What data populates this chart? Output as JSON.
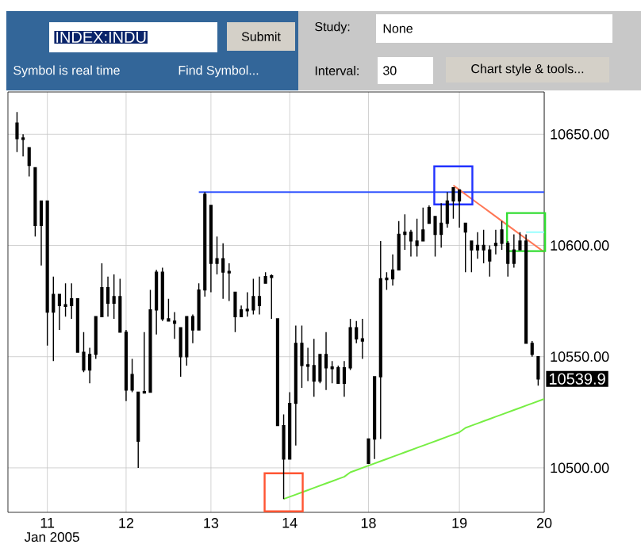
{
  "chart_data": {
    "type": "candlestick",
    "color": "#000000",
    "categories": [
      null,
      null,
      null,
      null,
      null,
      "11",
      null,
      null,
      null,
      null,
      null,
      null,
      null,
      null,
      null,
      null,
      null,
      null,
      "12",
      null,
      null,
      null,
      null,
      null,
      null,
      null,
      null,
      null,
      null,
      null,
      null,
      null,
      "13",
      null,
      null,
      null,
      null,
      null,
      null,
      null,
      null,
      null,
      null,
      null,
      null,
      "14",
      null,
      null,
      null,
      null,
      null,
      null,
      null,
      null,
      null,
      null,
      null,
      null,
      "18",
      null,
      null,
      null,
      null,
      null,
      null,
      null,
      null,
      null,
      null,
      null,
      null,
      null,
      null,
      "19",
      null,
      null,
      null,
      null,
      null,
      null,
      null,
      null,
      null,
      null,
      null,
      null,
      null,
      "20"
    ],
    "ohlc": [
      [
        10655,
        10660,
        10642,
        10648
      ],
      [
        10648,
        10650,
        10640,
        10648
      ],
      [
        10644,
        10644,
        10631,
        10636
      ],
      [
        10635,
        10635,
        10604,
        10609
      ],
      [
        10609,
        10620,
        10591,
        10620
      ],
      [
        10620,
        10620,
        10555,
        10570
      ],
      [
        10570,
        10586,
        10548,
        10578
      ],
      [
        10578,
        10578,
        10562,
        10573
      ],
      [
        10573,
        10583,
        10568,
        10573
      ],
      [
        10573,
        10583,
        10567,
        10576
      ],
      [
        10576,
        10576,
        10552,
        10552
      ],
      [
        10552,
        10561,
        10543,
        10544
      ],
      [
        10544,
        10554,
        10538,
        10551
      ],
      [
        10551,
        10568,
        10549,
        10568
      ],
      [
        10568,
        10592,
        10568,
        10581
      ],
      [
        10581,
        10586,
        10568,
        10574
      ],
      [
        10574,
        10587,
        10567,
        10577
      ],
      [
        10577,
        10585,
        10561,
        10561
      ],
      [
        10561,
        10562,
        10530,
        10535
      ],
      [
        10535,
        10549,
        10534,
        10542
      ],
      [
        10534,
        10534,
        10500,
        10512
      ],
      [
        10534,
        10561,
        10534,
        10534
      ],
      [
        10534,
        10580,
        10534,
        10571
      ],
      [
        10571,
        10589,
        10560,
        10588
      ],
      [
        10588,
        10590,
        10566,
        10567
      ],
      [
        10567,
        10576,
        10566,
        10566
      ],
      [
        10566,
        10570,
        10558,
        10565
      ],
      [
        10563,
        10563,
        10541,
        10550
      ],
      [
        10550,
        10568,
        10546,
        10568
      ],
      [
        10568,
        10569,
        10556,
        10562
      ],
      [
        10562,
        10583,
        10562,
        10580
      ],
      [
        10580,
        10624,
        10577,
        10623
      ],
      [
        10618,
        10618,
        10579,
        10592
      ],
      [
        10592,
        10604,
        10587,
        10594
      ],
      [
        10594,
        10601,
        10576,
        10588
      ],
      [
        10588,
        10592,
        10575,
        10588
      ],
      [
        10579,
        10579,
        10561,
        10568
      ],
      [
        10568,
        10573,
        10568,
        10571
      ],
      [
        10571,
        10579,
        10568,
        10571
      ],
      [
        10571,
        10585,
        10569,
        10577
      ],
      [
        10577,
        10586,
        10569,
        10573
      ],
      [
        10583,
        10588,
        10583,
        10586
      ],
      [
        10586,
        10587,
        10567,
        10586
      ],
      [
        10567,
        10567,
        10519,
        10519
      ],
      [
        10519,
        10524,
        10486,
        10504
      ],
      [
        10504,
        10534,
        10504,
        10529
      ],
      [
        10529,
        10564,
        10510,
        10556
      ],
      [
        10556,
        10564,
        10536,
        10546
      ],
      [
        10546,
        10554,
        10539,
        10546
      ],
      [
        10546,
        10558,
        10532,
        10539
      ],
      [
        10539,
        10551,
        10538,
        10551
      ],
      [
        10551,
        10561,
        10535,
        10545
      ],
      [
        10545,
        10548,
        10538,
        10545
      ],
      [
        10545,
        10546,
        10538,
        10538
      ],
      [
        10538,
        10548,
        10532,
        10545
      ],
      [
        10545,
        10567,
        10544,
        10563
      ],
      [
        10563,
        10566,
        10556,
        10558
      ],
      [
        10558,
        10567,
        10549,
        10557
      ],
      [
        10502,
        10513,
        10502,
        10513
      ],
      [
        10513,
        10541,
        10504,
        10541
      ],
      [
        10541,
        10602,
        10513,
        10585
      ],
      [
        10585,
        10588,
        10580,
        10585
      ],
      [
        10585,
        10596,
        10582,
        10589
      ],
      [
        10589,
        10611,
        10589,
        10605
      ],
      [
        10605,
        10614,
        10598,
        10606
      ],
      [
        10606,
        10607,
        10595,
        10602
      ],
      [
        10602,
        10612,
        10595,
        10600
      ],
      [
        10602,
        10617,
        10602,
        10607
      ],
      [
        10610,
        10618,
        10610,
        10617
      ],
      [
        10613,
        10613,
        10595,
        10605
      ],
      [
        10605,
        10619,
        10599,
        10610
      ],
      [
        10610,
        10624,
        10608,
        10620
      ],
      [
        10620,
        10626,
        10612,
        10626
      ],
      [
        10625,
        10625,
        10608,
        10620
      ],
      [
        10610,
        10610,
        10588,
        10606
      ],
      [
        10602,
        10602,
        10588,
        10598
      ],
      [
        10598,
        10606,
        10594,
        10600
      ],
      [
        10600,
        10607,
        10592,
        10598
      ],
      [
        10598,
        10600,
        10586,
        10593
      ],
      [
        10600,
        10607,
        10596,
        10601
      ],
      [
        10601,
        10611,
        10598,
        10607
      ],
      [
        10601,
        10602,
        10586,
        10592
      ],
      [
        10592,
        10605,
        10590,
        10598
      ],
      [
        10598,
        10606,
        10598,
        10602
      ],
      [
        10602,
        10605,
        10556,
        10556
      ],
      [
        10556,
        10557,
        10550,
        10551
      ],
      [
        10550,
        10550,
        10537,
        10540
      ],
      null
    ],
    "series": [
      {
        "type": "line",
        "color": "#3355ff",
        "values": [
          null,
          null,
          null,
          null,
          null,
          null,
          null,
          null,
          null,
          null,
          null,
          null,
          null,
          null,
          null,
          null,
          null,
          null,
          null,
          null,
          null,
          null,
          null,
          null,
          null,
          null,
          null,
          null,
          null,
          null,
          10624,
          10624,
          10624,
          10624,
          10624,
          10624,
          10624,
          10624,
          10624,
          10624,
          10624,
          10624,
          10624,
          10624,
          10624,
          10624,
          10624,
          10624,
          10624,
          10624,
          10624,
          10624,
          10624,
          10624,
          10624,
          10624,
          10624,
          10624,
          10624,
          10624,
          10624,
          10624,
          10624,
          10624,
          10624,
          10624,
          10624,
          10624,
          10624,
          10624,
          10624,
          10624,
          10624,
          10624,
          10624,
          10624,
          10624,
          10624,
          10624,
          10624,
          10624,
          10624,
          10624,
          10624,
          10624,
          10624,
          10624,
          10624
        ]
      },
      {
        "type": "line",
        "color": "#99ffff",
        "values": [
          null,
          null,
          null,
          null,
          null,
          null,
          null,
          null,
          null,
          null,
          null,
          null,
          null,
          null,
          null,
          null,
          null,
          null,
          null,
          null,
          null,
          null,
          null,
          null,
          null,
          null,
          null,
          null,
          null,
          null,
          null,
          null,
          null,
          null,
          null,
          null,
          null,
          null,
          null,
          null,
          null,
          null,
          null,
          null,
          null,
          null,
          null,
          null,
          null,
          null,
          null,
          null,
          null,
          null,
          null,
          null,
          null,
          null,
          null,
          null,
          null,
          null,
          null,
          null,
          null,
          null,
          null,
          null,
          null,
          null,
          null,
          null,
          null,
          null,
          null,
          null,
          null,
          null,
          null,
          null,
          null,
          null,
          null,
          null,
          10606,
          10606,
          10606,
          10606
        ]
      },
      {
        "type": "line",
        "color": "#ff7755",
        "values": [
          null,
          null,
          null,
          null,
          null,
          null,
          null,
          null,
          null,
          null,
          null,
          null,
          null,
          null,
          null,
          null,
          null,
          null,
          null,
          null,
          null,
          null,
          null,
          null,
          null,
          null,
          null,
          null,
          null,
          null,
          null,
          null,
          null,
          null,
          null,
          null,
          null,
          null,
          null,
          null,
          null,
          null,
          null,
          null,
          null,
          null,
          null,
          null,
          null,
          null,
          null,
          null,
          null,
          null,
          null,
          null,
          null,
          null,
          null,
          null,
          null,
          null,
          null,
          null,
          null,
          null,
          null,
          null,
          null,
          null,
          null,
          null,
          10627,
          10625,
          10623,
          10621,
          10619,
          10617,
          10615,
          10613,
          10611,
          10609,
          10607,
          10605,
          10603,
          10601,
          10599,
          10597
        ]
      },
      {
        "type": "line",
        "color": "#77ee44",
        "values": [
          null,
          null,
          null,
          null,
          null,
          null,
          null,
          null,
          null,
          null,
          null,
          null,
          null,
          null,
          null,
          null,
          null,
          null,
          null,
          null,
          null,
          null,
          null,
          null,
          null,
          null,
          null,
          null,
          null,
          null,
          null,
          null,
          null,
          null,
          null,
          null,
          null,
          null,
          null,
          null,
          null,
          null,
          null,
          null,
          10486,
          10487,
          10488,
          10489,
          10490,
          10491,
          10492,
          10493,
          10494,
          10495,
          10496,
          10498,
          10499,
          10500,
          10501,
          10502,
          10503,
          10504,
          10505,
          10506,
          10507,
          10508,
          10509,
          10510,
          10511,
          10512,
          10513,
          10514,
          10515,
          10516,
          10518,
          10519,
          10520,
          10521,
          10522,
          10523,
          10524,
          10525,
          10526,
          10527,
          10528,
          10529,
          10530,
          10531
        ]
      },
      {
        "type": "scatter",
        "marker": "square",
        "color": "#ff5533",
        "values": [
          null,
          null,
          null,
          null,
          null,
          null,
          null,
          null,
          null,
          null,
          null,
          null,
          null,
          null,
          null,
          null,
          null,
          null,
          null,
          null,
          null,
          null,
          null,
          null,
          null,
          null,
          null,
          null,
          null,
          null,
          null,
          null,
          null,
          null,
          null,
          null,
          null,
          null,
          null,
          null,
          null,
          null,
          null,
          null,
          10489,
          null,
          null,
          null,
          null,
          null,
          null,
          null,
          null,
          null,
          null,
          null,
          null,
          null,
          null,
          null,
          null,
          null,
          null,
          null,
          null,
          null,
          null,
          null,
          null,
          null,
          null,
          null,
          null,
          null,
          null,
          null,
          null,
          null,
          null,
          null,
          null,
          null,
          null,
          null,
          null,
          null,
          null,
          null
        ]
      },
      {
        "type": "scatter",
        "marker": "square",
        "color": "#2233ff",
        "values": [
          null,
          null,
          null,
          null,
          null,
          null,
          null,
          null,
          null,
          null,
          null,
          null,
          null,
          null,
          null,
          null,
          null,
          null,
          null,
          null,
          null,
          null,
          null,
          null,
          null,
          null,
          null,
          null,
          null,
          null,
          null,
          null,
          null,
          null,
          null,
          null,
          null,
          null,
          null,
          null,
          null,
          null,
          null,
          null,
          null,
          null,
          null,
          null,
          null,
          null,
          null,
          null,
          null,
          null,
          null,
          null,
          null,
          null,
          null,
          null,
          null,
          null,
          null,
          null,
          null,
          null,
          null,
          null,
          null,
          null,
          null,
          null,
          10627,
          null,
          null,
          null,
          null,
          null,
          null,
          null,
          null,
          null,
          null,
          null,
          null,
          null,
          null,
          null
        ]
      },
      {
        "type": "scatter",
        "marker": "square",
        "color": "#33dd33",
        "values": [
          null,
          null,
          null,
          null,
          null,
          null,
          null,
          null,
          null,
          null,
          null,
          null,
          null,
          null,
          null,
          null,
          null,
          null,
          null,
          null,
          null,
          null,
          null,
          null,
          null,
          null,
          null,
          null,
          null,
          null,
          null,
          null,
          null,
          null,
          null,
          null,
          null,
          null,
          null,
          null,
          null,
          null,
          null,
          null,
          null,
          null,
          null,
          null,
          null,
          null,
          null,
          null,
          null,
          null,
          null,
          null,
          null,
          null,
          null,
          null,
          null,
          null,
          null,
          null,
          null,
          null,
          null,
          null,
          null,
          null,
          null,
          null,
          null,
          null,
          null,
          null,
          null,
          null,
          null,
          null,
          null,
          null,
          null,
          null,
          10606,
          null,
          null,
          null
        ]
      }
    ],
    "ylim": [
      10480,
      10669
    ],
    "yticks": [
      {
        "value": 10500,
        "label": "10500.00"
      },
      {
        "value": 10550,
        "label": "10550.00"
      },
      {
        "value": 10600,
        "label": "10600.00"
      },
      {
        "value": 10650,
        "label": "10650.00"
      }
    ],
    "xlabel": "Jan 2005",
    "grid": true,
    "annotations": [
      "INDEX:INDU",
      "Submit",
      "Symbol is real time",
      "Find Symbol...",
      "Study:",
      "None",
      "Interval:",
      "30",
      "Chart style & tools...",
      "10539.9"
    ]
  }
}
